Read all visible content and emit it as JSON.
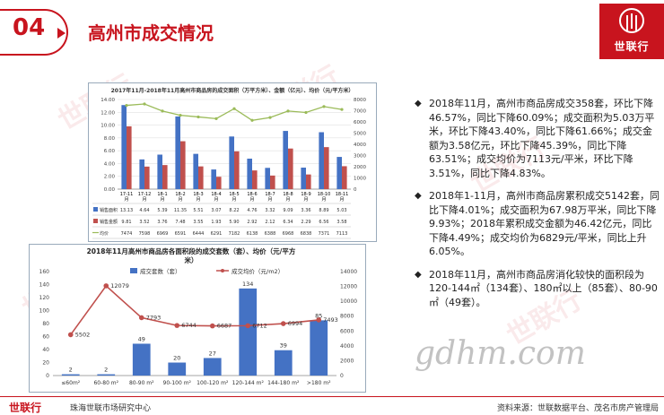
{
  "header": {
    "section_number": "04",
    "title": "高州市成交情况",
    "logo_text": "世联行"
  },
  "watermark_text": "世联行",
  "chart_data": [
    {
      "type": "bar",
      "title": "2017年11月-2018年11月高州市商品房的成交面积（万平方米）、金额（亿元）、均价（元/平方米）",
      "categories": [
        "17-11月",
        "17-12月",
        "18-1月",
        "18-2月",
        "18-3月",
        "18-4月",
        "18-5月",
        "18-6月",
        "18-7月",
        "18-8月",
        "18-9月",
        "18-10月",
        "18-11月"
      ],
      "series": [
        {
          "name": "销售面积",
          "type": "bar",
          "axis": "left",
          "color": "#4472c4",
          "values": [
            13.13,
            4.64,
            5.39,
            11.35,
            5.51,
            3.07,
            8.22,
            4.76,
            3.32,
            9.09,
            3.36,
            8.89,
            5.03
          ]
        },
        {
          "name": "销售金额",
          "type": "bar",
          "axis": "left",
          "color": "#c0504d",
          "values": [
            9.81,
            3.52,
            3.76,
            7.48,
            3.55,
            1.93,
            5.9,
            2.92,
            2.12,
            6.34,
            2.29,
            6.56,
            3.58
          ]
        },
        {
          "name": "均价",
          "type": "line",
          "axis": "right",
          "color": "#9bbb59",
          "values": [
            7474,
            7598,
            6969,
            6591,
            6444,
            6291,
            7182,
            6138,
            6388,
            6968,
            6838,
            7371,
            7113
          ]
        }
      ],
      "ylim": [
        0,
        14
      ],
      "yticks_left": [
        "0.00",
        "2.00",
        "4.00",
        "6.00",
        "8.00",
        "10.00",
        "12.00",
        "14.00"
      ],
      "ylim_right": [
        0,
        8000
      ],
      "yticks_right": [
        "0",
        "1000",
        "2000",
        "3000",
        "4000",
        "5000",
        "6000",
        "7000",
        "8000"
      ],
      "table_rows": [
        {
          "label": "销售面积",
          "values": [
            "13.13",
            "4.64",
            "5.39",
            "11.35",
            "5.51",
            "3.07",
            "8.22",
            "4.76",
            "3.32",
            "9.09",
            "3.36",
            "8.89",
            "5.03"
          ]
        },
        {
          "label": "销售金额",
          "values": [
            "9.81",
            "3.52",
            "3.76",
            "7.48",
            "3.55",
            "1.93",
            "5.90",
            "2.92",
            "2.12",
            "6.34",
            "2.29",
            "6.56",
            "3.58"
          ]
        },
        {
          "label": "均价",
          "values": [
            "7474",
            "7598",
            "6969",
            "6591",
            "6444",
            "6291",
            "7182",
            "6138",
            "6388",
            "6968",
            "6838",
            "7371",
            "7113"
          ]
        }
      ],
      "grid": true
    },
    {
      "type": "bar",
      "title": "2018年11月高州市商品房各面积段的成交套数（套）、均价（元/平方米）",
      "categories": [
        "≤60m²",
        "60-80 m²",
        "80-90 m²",
        "90-100 m²",
        "100-120 m²",
        "120-144 m²",
        "144-180 m²",
        ">180 m²"
      ],
      "series": [
        {
          "name": "成交套数（套）",
          "type": "bar",
          "axis": "left",
          "color": "#4472c4",
          "values": [
            2,
            2,
            49,
            20,
            27,
            134,
            39,
            85
          ]
        },
        {
          "name": "成交均价（元/m2）",
          "type": "line",
          "axis": "right",
          "color": "#c0504d",
          "values": [
            5502,
            12079,
            7793,
            6744,
            6687,
            6712,
            6994,
            7493
          ]
        }
      ],
      "bar_labels": [
        "2",
        "2",
        "49",
        "20",
        "27",
        "134",
        "39",
        "85"
      ],
      "line_labels": [
        "5502",
        "12079",
        "7793",
        "6744",
        "6687",
        "6712",
        "6994",
        "7493"
      ],
      "ylim": [
        0,
        160
      ],
      "yticks_left": [
        "0",
        "20",
        "40",
        "60",
        "80",
        "100",
        "120",
        "140",
        "160"
      ],
      "ylim_right": [
        0,
        14000
      ],
      "yticks_right": [
        "0",
        "2000",
        "4000",
        "6000",
        "8000",
        "10000",
        "12000",
        "14000"
      ],
      "legend_position": "top"
    }
  ],
  "bullets": [
    "2018年11月，高州市商品房成交358套，环比下降46.57%，同比下降60.09%；成交面积为5.03万平米，环比下降43.40%，同比下降61.66%；成交金额为3.58亿元，环比下降45.39%，同比下降63.51%；成交均价为7113元/平米，环比下降3.51%，同比下降4.83%。",
    "2018年1-11月，高州市商品房累积成交5142套，同比下降4.01%；成交面积为67.98万平米，同比下降9.93%；2018年累积成交金额为46.42亿元，同比下降4.49%；成交均价为6829元/平米，同比上升6.05%。",
    "2018年11月，高州市商品房消化较快的面积段为120-144㎡（134套）、180㎡以上（85套）、80-90㎡（49套）。"
  ],
  "bullet_marker": "◆",
  "site_watermark": "gdhm.com",
  "footer": {
    "logo": "世联行",
    "subtitle": "珠海世联市场研究中心",
    "source": "资料来源：世联数据平台、茂名市房产管理局"
  }
}
